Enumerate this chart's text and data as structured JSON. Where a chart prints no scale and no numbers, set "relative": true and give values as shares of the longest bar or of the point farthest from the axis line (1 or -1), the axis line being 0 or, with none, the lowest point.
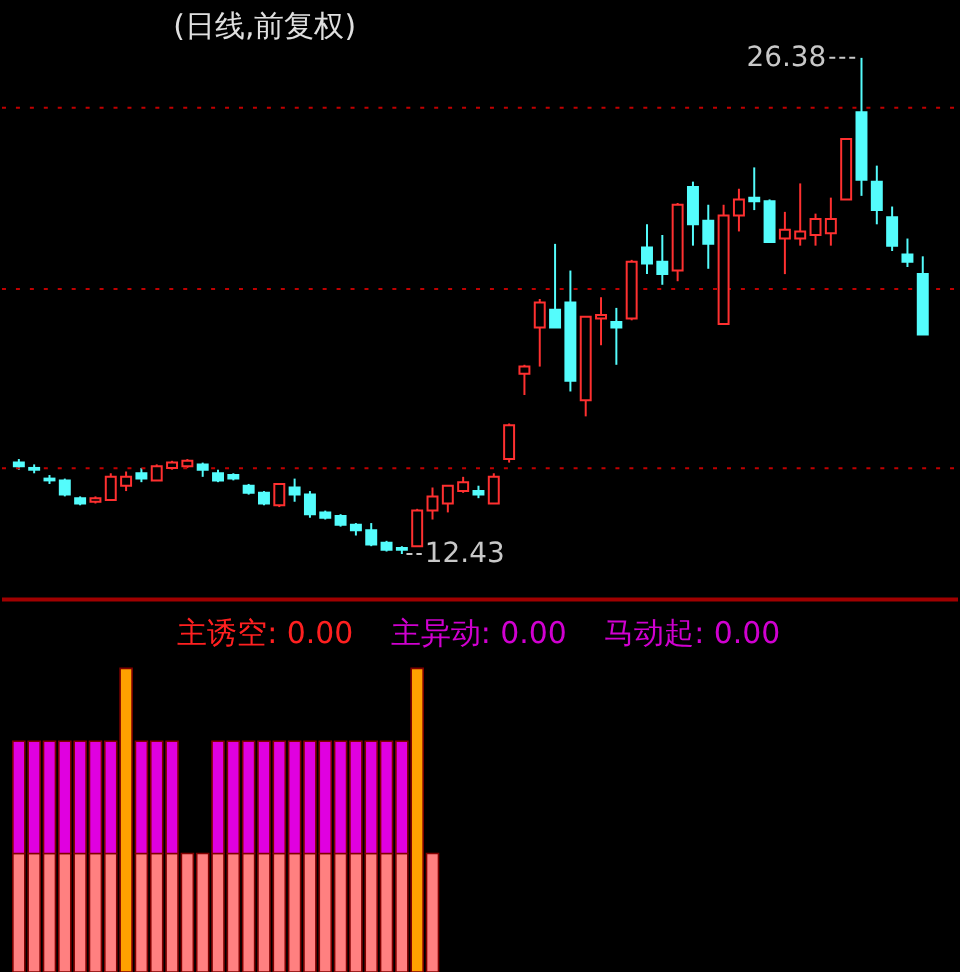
{
  "chart_data": [
    {
      "type": "candlestick",
      "title": "(日线,前复权)",
      "categories": [
        null,
        null,
        null,
        null,
        null,
        null,
        null,
        null,
        null,
        null,
        null,
        null,
        null,
        null,
        null,
        null,
        null,
        null,
        null,
        null,
        null,
        null,
        null,
        null,
        null,
        null,
        null,
        null,
        null,
        null,
        null,
        null,
        null,
        null,
        null,
        null,
        null,
        null,
        null,
        null,
        null,
        null,
        null,
        null,
        null,
        null,
        null,
        null,
        null,
        null,
        null,
        null,
        null,
        null,
        null,
        null,
        null,
        null,
        null,
        null
      ],
      "ohlc": [
        [
          15.0,
          15.1,
          14.8,
          14.9
        ],
        [
          14.85,
          14.95,
          14.7,
          14.8
        ],
        [
          14.55,
          14.65,
          14.4,
          14.5
        ],
        [
          14.5,
          14.55,
          14.05,
          14.1
        ],
        [
          14.0,
          14.05,
          13.8,
          13.85
        ],
        [
          13.9,
          14.05,
          13.85,
          14.0
        ],
        [
          13.95,
          14.7,
          13.95,
          14.6
        ],
        [
          14.35,
          14.75,
          14.2,
          14.6
        ],
        [
          14.7,
          14.85,
          14.45,
          14.55
        ],
        [
          14.5,
          14.95,
          14.5,
          14.9
        ],
        [
          14.85,
          15.05,
          14.8,
          15.0
        ],
        [
          14.9,
          15.1,
          14.85,
          15.05
        ],
        [
          14.95,
          15.0,
          14.6,
          14.8
        ],
        [
          14.7,
          14.8,
          14.45,
          14.5
        ],
        [
          14.65,
          14.7,
          14.5,
          14.55
        ],
        [
          14.35,
          14.4,
          14.1,
          14.15
        ],
        [
          14.15,
          14.2,
          13.8,
          13.85
        ],
        [
          13.8,
          14.4,
          13.75,
          14.4
        ],
        [
          14.3,
          14.55,
          13.9,
          14.1
        ],
        [
          14.1,
          14.2,
          13.45,
          13.55
        ],
        [
          13.6,
          13.65,
          13.4,
          13.45
        ],
        [
          13.5,
          13.55,
          13.2,
          13.25
        ],
        [
          13.25,
          13.3,
          12.95,
          13.1
        ],
        [
          13.1,
          13.3,
          12.65,
          12.7
        ],
        [
          12.75,
          12.8,
          12.5,
          12.55
        ],
        [
          12.6,
          12.65,
          12.43,
          12.55
        ],
        [
          12.65,
          13.7,
          12.65,
          13.65
        ],
        [
          13.65,
          14.3,
          13.4,
          14.05
        ],
        [
          13.85,
          14.35,
          13.6,
          14.35
        ],
        [
          14.2,
          14.6,
          14.15,
          14.45
        ],
        [
          14.2,
          14.35,
          14.0,
          14.1
        ],
        [
          13.85,
          14.7,
          13.85,
          14.6
        ],
        [
          15.1,
          16.1,
          15.0,
          16.05
        ],
        [
          17.5,
          17.75,
          16.9,
          17.7
        ],
        [
          18.8,
          19.6,
          17.7,
          19.5
        ],
        [
          19.3,
          21.15,
          18.8,
          18.8
        ],
        [
          19.5,
          20.4,
          17.0,
          17.3
        ],
        [
          16.75,
          19.1,
          16.3,
          19.1
        ],
        [
          19.05,
          19.65,
          18.3,
          19.15
        ],
        [
          18.95,
          19.35,
          17.75,
          18.8
        ],
        [
          19.05,
          20.7,
          19.0,
          20.65
        ],
        [
          21.05,
          21.7,
          20.3,
          20.6
        ],
        [
          20.65,
          21.4,
          20.0,
          20.3
        ],
        [
          20.4,
          22.3,
          20.1,
          22.25
        ],
        [
          22.75,
          22.9,
          21.1,
          21.7
        ],
        [
          21.8,
          22.25,
          20.45,
          21.15
        ],
        [
          18.9,
          22.25,
          18.9,
          21.95
        ],
        [
          21.95,
          22.7,
          21.5,
          22.4
        ],
        [
          22.45,
          23.3,
          22.1,
          22.35
        ],
        [
          22.35,
          22.4,
          21.2,
          21.2
        ],
        [
          21.3,
          22.05,
          20.3,
          21.55
        ],
        [
          21.3,
          22.85,
          21.1,
          21.5
        ],
        [
          21.4,
          22.0,
          21.1,
          21.85
        ],
        [
          21.45,
          22.45,
          21.1,
          21.85
        ],
        [
          22.4,
          24.1,
          22.4,
          24.1
        ],
        [
          24.85,
          26.38,
          22.5,
          22.95
        ],
        [
          22.9,
          23.35,
          21.7,
          22.1
        ],
        [
          21.9,
          22.2,
          20.95,
          21.1
        ],
        [
          20.85,
          21.3,
          20.5,
          20.65
        ],
        [
          20.3,
          20.8,
          18.6,
          18.6
        ]
      ],
      "ylim": [
        11.15,
        27.95
      ],
      "ref_lines": [
        {
          "axis": "y",
          "value": 24.98,
          "color": "#c00000",
          "line_style": "dotted"
        },
        {
          "axis": "y",
          "value": 19.88,
          "color": "#c00000",
          "line_style": "dotted"
        },
        {
          "axis": "y",
          "value": 14.84,
          "color": "#c00000",
          "line_style": "dotted"
        }
      ],
      "annotations": [
        "26.38",
        "12.43"
      ]
    },
    {
      "type": "bar",
      "stacked": true,
      "relative": true,
      "categories": [
        null,
        null,
        null,
        null,
        null,
        null,
        null,
        null,
        null,
        null,
        null,
        null,
        null,
        null,
        null,
        null,
        null,
        null,
        null,
        null,
        null,
        null,
        null,
        null,
        null,
        null,
        null,
        null
      ],
      "series": [
        {
          "color": "#ff8080",
          "values": [
            0.39,
            0.39,
            0.39,
            0.39,
            0.39,
            0.39,
            0.39,
            null,
            0.39,
            0.39,
            0.39,
            0.39,
            0.39,
            0.39,
            0.39,
            0.39,
            0.39,
            0.39,
            0.39,
            0.39,
            0.39,
            0.39,
            0.39,
            0.39,
            0.39,
            0.39,
            null,
            0.39
          ]
        },
        {
          "color": "#e000e0",
          "values": [
            0.37,
            0.37,
            0.37,
            0.37,
            0.37,
            0.37,
            0.37,
            null,
            0.37,
            0.37,
            0.37,
            null,
            null,
            0.37,
            0.37,
            0.37,
            0.37,
            0.37,
            0.37,
            0.37,
            0.37,
            0.37,
            0.37,
            0.37,
            0.37,
            0.37,
            null,
            null
          ]
        },
        {
          "color": "#ffa000",
          "values": [
            null,
            null,
            null,
            null,
            null,
            null,
            null,
            1,
            null,
            null,
            null,
            null,
            null,
            null,
            null,
            null,
            null,
            null,
            null,
            null,
            null,
            null,
            null,
            null,
            null,
            null,
            1,
            null
          ]
        }
      ],
      "annotations": [
        "主诱空: 0.00",
        "主异动: 0.00",
        "马动起: 0.00"
      ]
    }
  ]
}
